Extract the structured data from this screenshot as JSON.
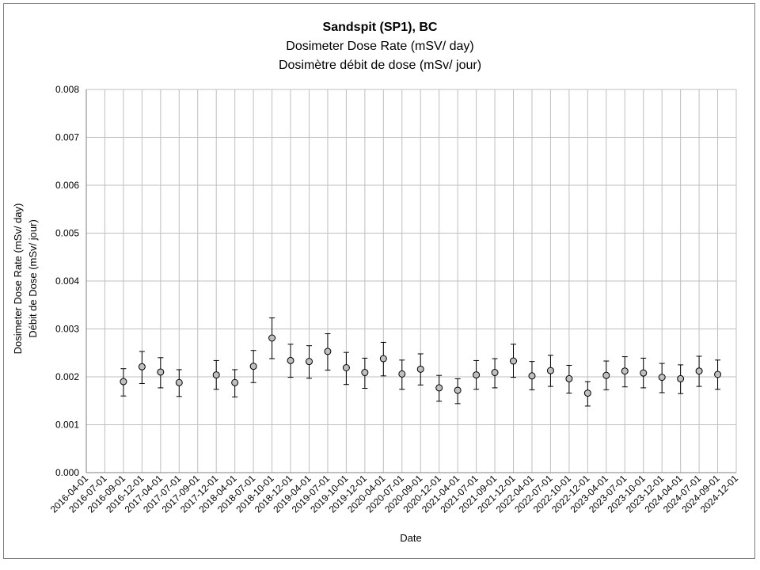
{
  "chart_data": {
    "type": "scatter",
    "title": "Sandspit (SP1), BC",
    "subtitle_1": "Dosimeter Dose Rate (mSV/ day)",
    "subtitle_2": "Dosimètre débit de dose (mSv/ jour)",
    "xlabel": "Date",
    "ylabel_1": "Dosimeter Dose Rate (mSv/ day)",
    "ylabel_2": "Débit de Dose (mSv/ jour)",
    "ylim": [
      0,
      0.008
    ],
    "y_ticks": [
      "0.000",
      "0.001",
      "0.002",
      "0.003",
      "0.004",
      "0.005",
      "0.006",
      "0.007",
      "0.008"
    ],
    "grid": true,
    "x_ticks": [
      "2016-04-01",
      "2016-07-01",
      "2016-09-01",
      "2016-12-01",
      "2017-04-01",
      "2017-07-01",
      "2017-09-01",
      "2017-12-01",
      "2018-04-01",
      "2018-07-01",
      "2018-10-01",
      "2018-12-01",
      "2019-04-01",
      "2019-07-01",
      "2019-10-01",
      "2019-12-01",
      "2020-04-01",
      "2020-07-01",
      "2020-09-01",
      "2020-12-01",
      "2021-04-01",
      "2021-07-01",
      "2021-09-01",
      "2021-12-01",
      "2022-04-01",
      "2022-07-01",
      "2022-10-01",
      "2022-12-01",
      "2023-04-01",
      "2023-07-01",
      "2023-10-01",
      "2023-12-01",
      "2024-04-01",
      "2024-07-01",
      "2024-09-01",
      "2024-12-01"
    ],
    "points": [
      {
        "x": "2016-09-01",
        "y": 0.0019,
        "err_low": 0.0016,
        "err_high": 0.00217
      },
      {
        "x": "2016-12-01",
        "y": 0.00221,
        "err_low": 0.00186,
        "err_high": 0.00253
      },
      {
        "x": "2017-04-01",
        "y": 0.0021,
        "err_low": 0.00177,
        "err_high": 0.0024
      },
      {
        "x": "2017-07-01",
        "y": 0.00188,
        "err_low": 0.00159,
        "err_high": 0.00215
      },
      {
        "x": "2017-12-01",
        "y": 0.00204,
        "err_low": 0.00174,
        "err_high": 0.00234
      },
      {
        "x": "2018-04-01",
        "y": 0.00188,
        "err_low": 0.00158,
        "err_high": 0.00215
      },
      {
        "x": "2018-07-01",
        "y": 0.00222,
        "err_low": 0.00188,
        "err_high": 0.00255
      },
      {
        "x": "2018-10-01",
        "y": 0.00281,
        "err_low": 0.00238,
        "err_high": 0.00323
      },
      {
        "x": "2018-12-01",
        "y": 0.00234,
        "err_low": 0.00199,
        "err_high": 0.00268
      },
      {
        "x": "2019-04-01",
        "y": 0.00232,
        "err_low": 0.00197,
        "err_high": 0.00265
      },
      {
        "x": "2019-07-01",
        "y": 0.00253,
        "err_low": 0.00214,
        "err_high": 0.0029
      },
      {
        "x": "2019-10-01",
        "y": 0.00219,
        "err_low": 0.00184,
        "err_high": 0.00251
      },
      {
        "x": "2019-12-01",
        "y": 0.00209,
        "err_low": 0.00176,
        "err_high": 0.00239
      },
      {
        "x": "2020-04-01",
        "y": 0.00238,
        "err_low": 0.00202,
        "err_high": 0.00272
      },
      {
        "x": "2020-07-01",
        "y": 0.00206,
        "err_low": 0.00174,
        "err_high": 0.00235
      },
      {
        "x": "2020-09-01",
        "y": 0.00216,
        "err_low": 0.00183,
        "err_high": 0.00248
      },
      {
        "x": "2020-12-01",
        "y": 0.00177,
        "err_low": 0.00149,
        "err_high": 0.00203
      },
      {
        "x": "2021-04-01",
        "y": 0.00172,
        "err_low": 0.00144,
        "err_high": 0.00196
      },
      {
        "x": "2021-07-01",
        "y": 0.00204,
        "err_low": 0.00174,
        "err_high": 0.00234
      },
      {
        "x": "2021-09-01",
        "y": 0.00209,
        "err_low": 0.00177,
        "err_high": 0.00238
      },
      {
        "x": "2021-12-01",
        "y": 0.00233,
        "err_low": 0.00199,
        "err_high": 0.00268
      },
      {
        "x": "2022-04-01",
        "y": 0.00202,
        "err_low": 0.00173,
        "err_high": 0.00232
      },
      {
        "x": "2022-07-01",
        "y": 0.00213,
        "err_low": 0.0018,
        "err_high": 0.00245
      },
      {
        "x": "2022-10-01",
        "y": 0.00196,
        "err_low": 0.00166,
        "err_high": 0.00224
      },
      {
        "x": "2022-12-01",
        "y": 0.00166,
        "err_low": 0.00139,
        "err_high": 0.0019
      },
      {
        "x": "2023-04-01",
        "y": 0.00203,
        "err_low": 0.00173,
        "err_high": 0.00233
      },
      {
        "x": "2023-07-01",
        "y": 0.00212,
        "err_low": 0.00179,
        "err_high": 0.00242
      },
      {
        "x": "2023-10-01",
        "y": 0.00208,
        "err_low": 0.00177,
        "err_high": 0.00239
      },
      {
        "x": "2023-12-01",
        "y": 0.00199,
        "err_low": 0.00167,
        "err_high": 0.00228
      },
      {
        "x": "2024-04-01",
        "y": 0.00196,
        "err_low": 0.00165,
        "err_high": 0.00225
      },
      {
        "x": "2024-07-01",
        "y": 0.00212,
        "err_low": 0.0018,
        "err_high": 0.00243
      },
      {
        "x": "2024-09-01",
        "y": 0.00205,
        "err_low": 0.00174,
        "err_high": 0.00235
      }
    ],
    "colors": {
      "marker_fill": "#bfbfbf",
      "marker_stroke": "#000000",
      "gridline": "#bfbfbf",
      "axis": "#7f7f7f"
    }
  }
}
